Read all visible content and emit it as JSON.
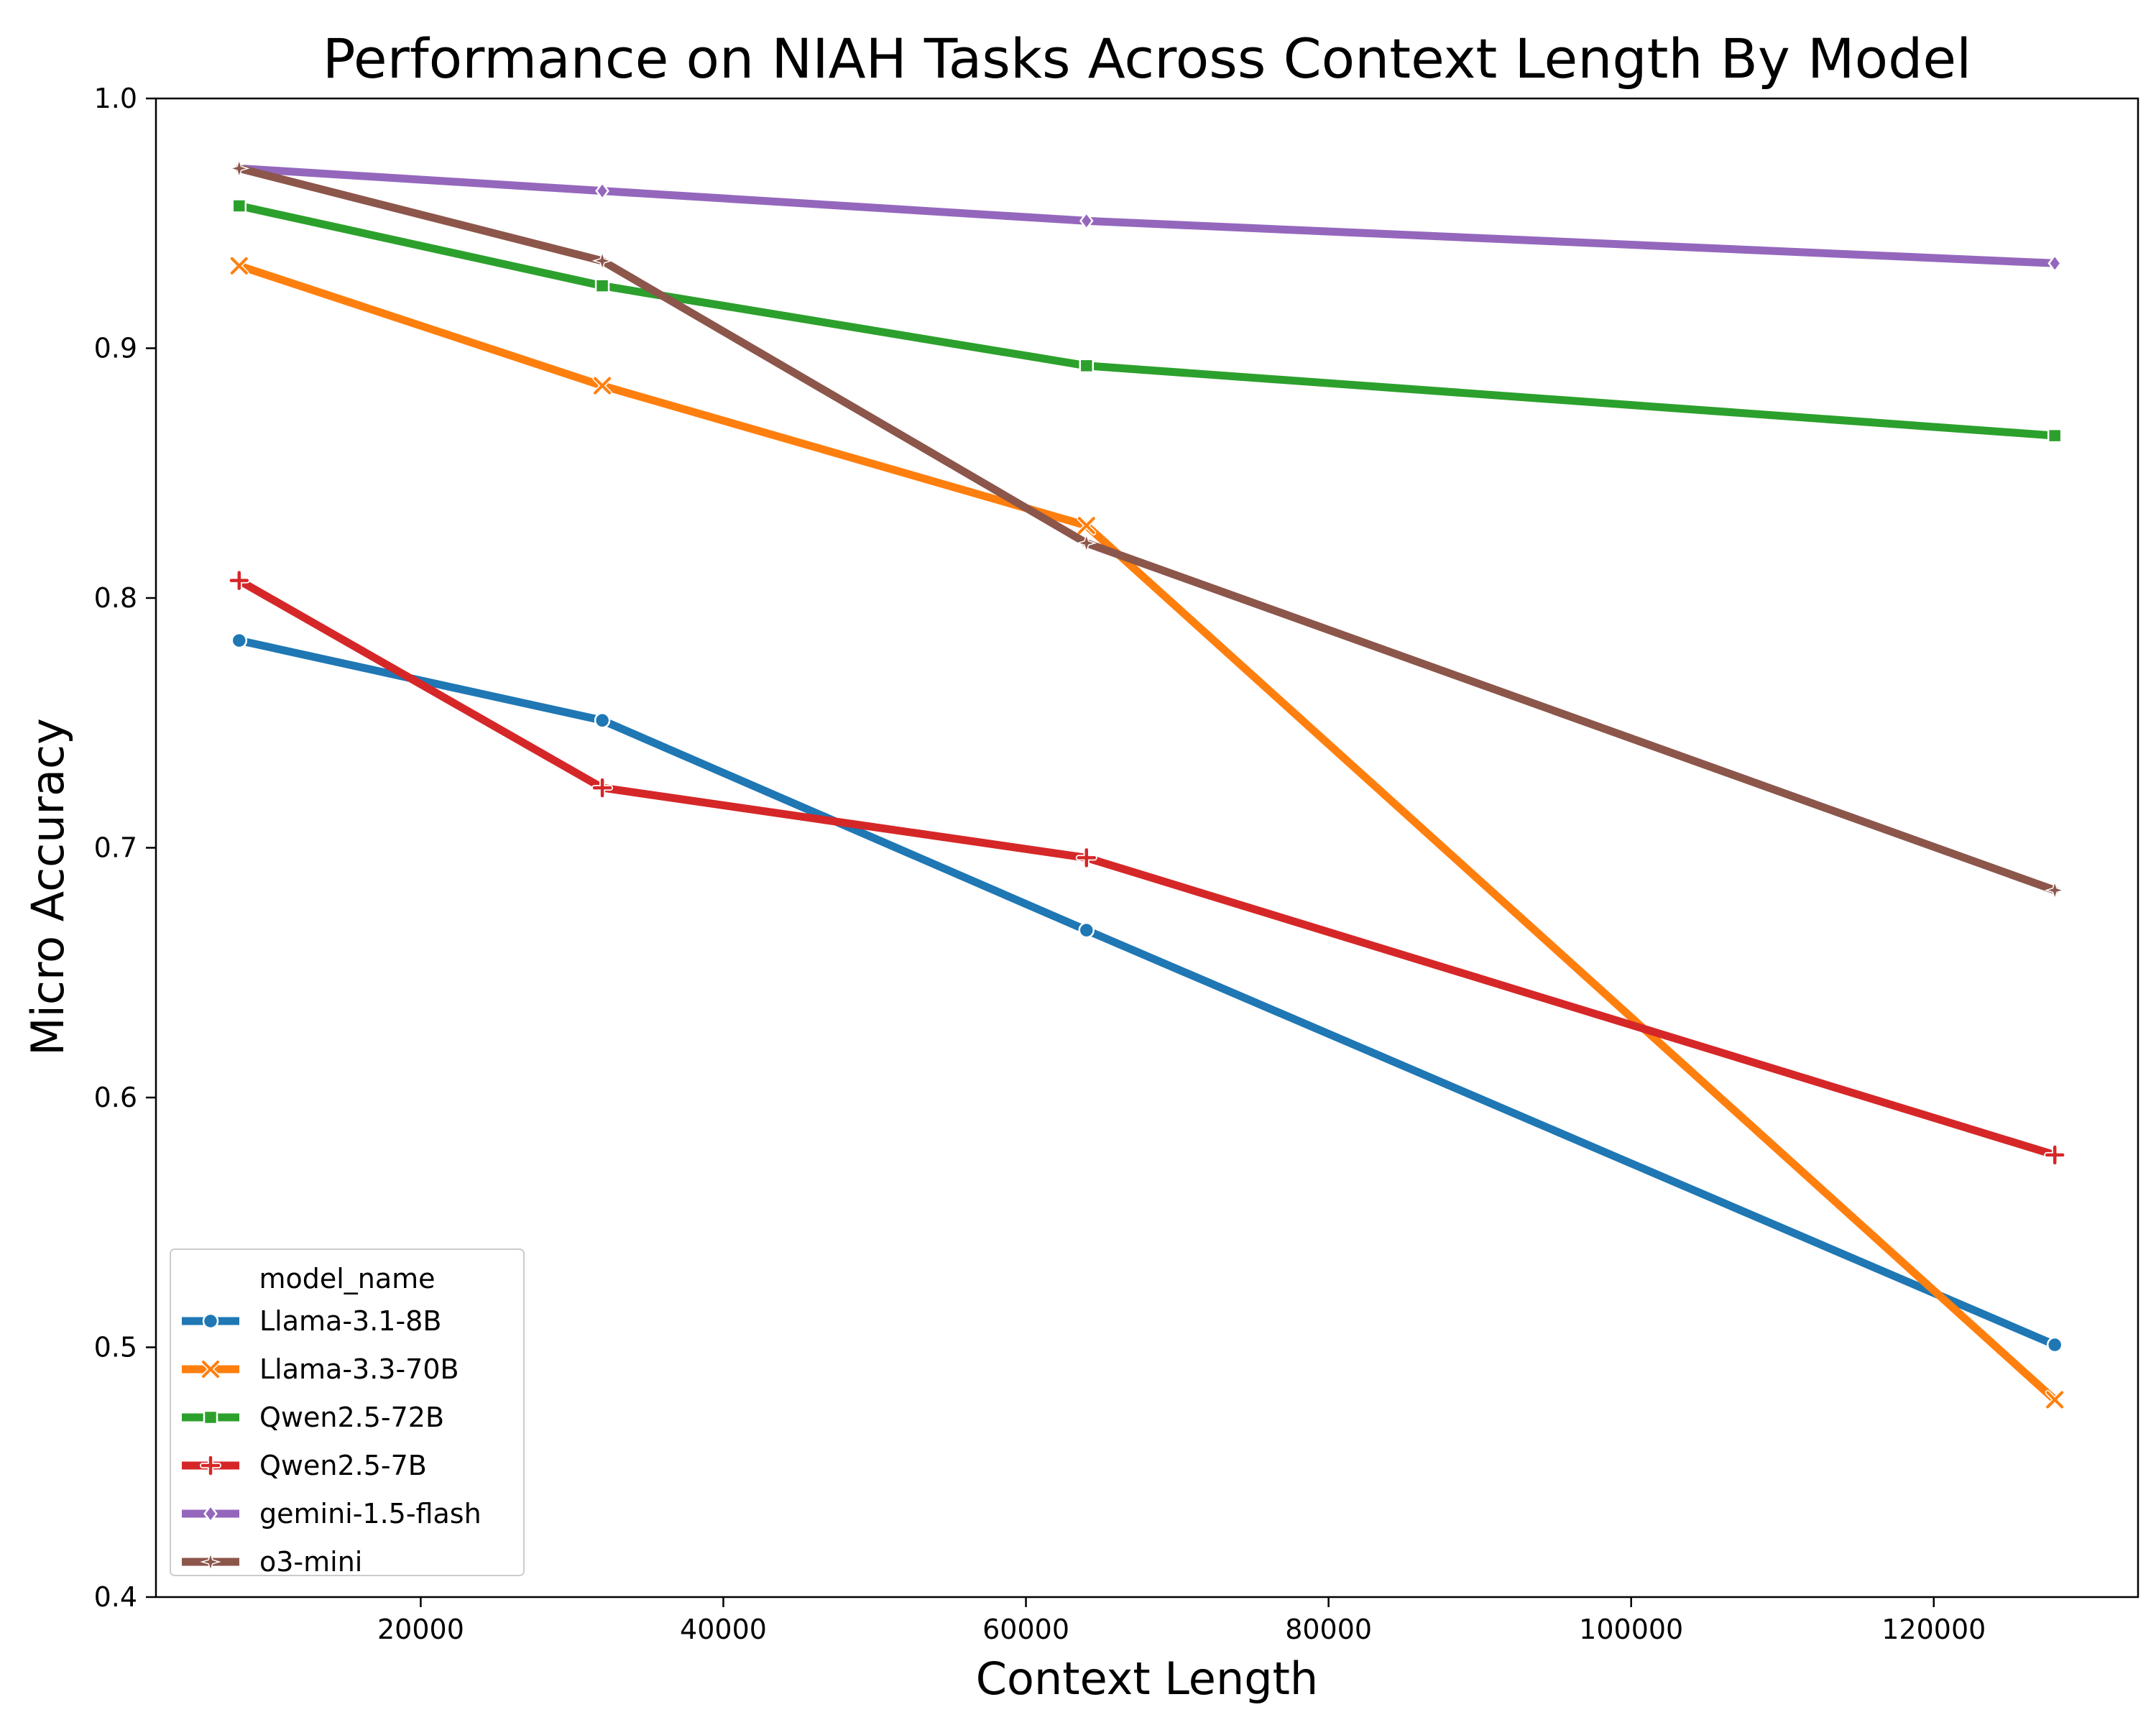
{
  "chart_data": {
    "type": "line",
    "title": "Performance on NIAH Tasks Across Context Length By Model",
    "xlabel": "Context Length",
    "ylabel": "Micro Accuracy",
    "xlim": [
      2500,
      133500
    ],
    "ylim": [
      0.4,
      1.0
    ],
    "xticks": [
      20000,
      40000,
      60000,
      80000,
      100000,
      120000
    ],
    "xtick_labels": [
      "20000",
      "40000",
      "60000",
      "80000",
      "100000",
      "120000"
    ],
    "yticks": [
      0.4,
      0.5,
      0.6,
      0.7,
      0.8,
      0.9,
      1.0
    ],
    "ytick_labels": [
      "0.4",
      "0.5",
      "0.6",
      "0.7",
      "0.8",
      "0.9",
      "1.0"
    ],
    "grid": false,
    "legend": {
      "title": "model_name",
      "position": "lower-left"
    },
    "x": [
      8000,
      32000,
      64000,
      128000
    ],
    "series": [
      {
        "name": "Llama-3.1-8B",
        "color": "#1f77b4",
        "marker": "circle",
        "values": [
          0.783,
          0.751,
          0.667,
          0.501
        ]
      },
      {
        "name": "Llama-3.3-70B",
        "color": "#ff7f0e",
        "marker": "x",
        "values": [
          0.933,
          0.885,
          0.829,
          0.479
        ]
      },
      {
        "name": "Qwen2.5-72B",
        "color": "#2ca02c",
        "marker": "square",
        "values": [
          0.957,
          0.925,
          0.893,
          0.865
        ]
      },
      {
        "name": "Qwen2.5-7B",
        "color": "#d62728",
        "marker": "plus",
        "values": [
          0.807,
          0.724,
          0.696,
          0.577
        ]
      },
      {
        "name": "gemini-1.5-flash",
        "color": "#9467bd",
        "marker": "diamond",
        "values": [
          0.972,
          0.963,
          0.951,
          0.934
        ]
      },
      {
        "name": "o3-mini",
        "color": "#8c564b",
        "marker": "star",
        "values": [
          0.972,
          0.935,
          0.822,
          0.683
        ]
      }
    ]
  }
}
